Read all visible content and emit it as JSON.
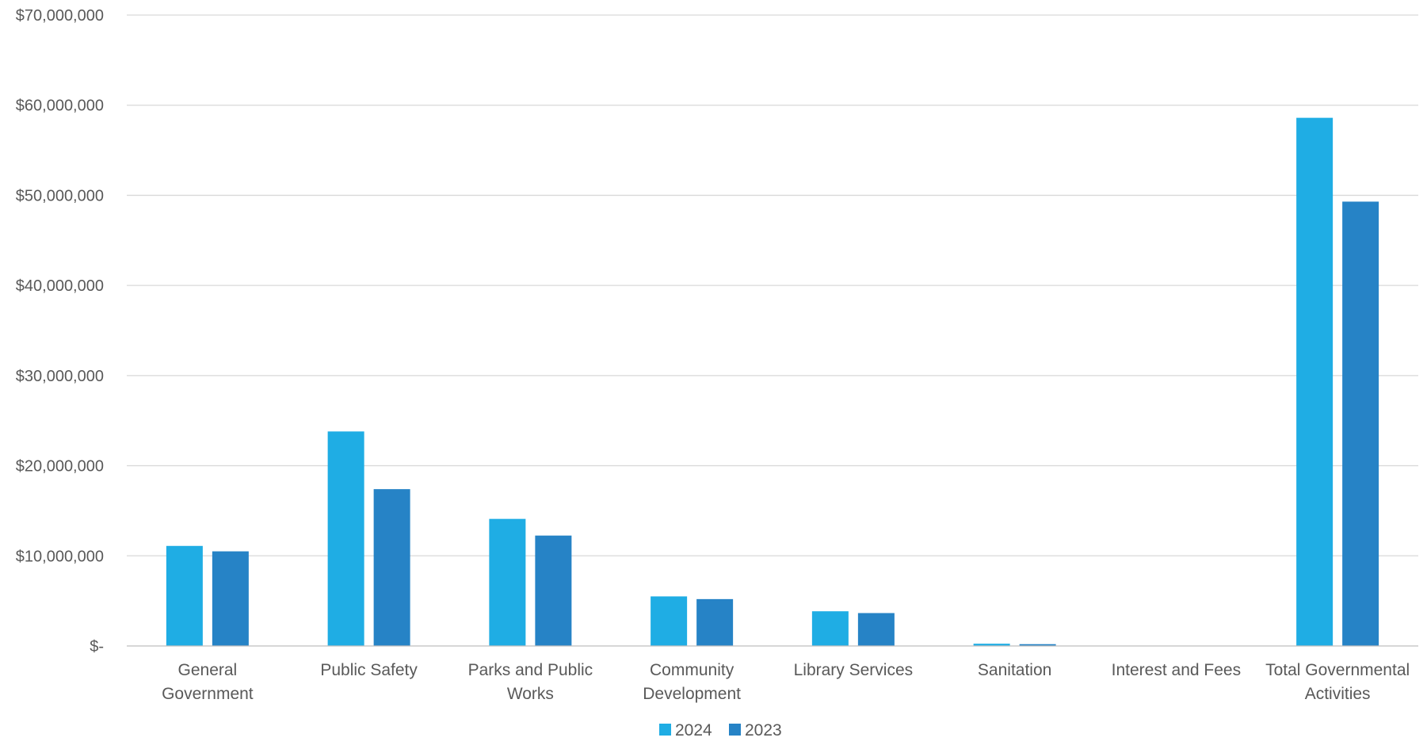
{
  "chart_data": {
    "type": "bar",
    "categories": [
      [
        "General",
        "Government"
      ],
      [
        "Public Safety"
      ],
      [
        "Parks and Public",
        "Works"
      ],
      [
        "Community",
        "Development"
      ],
      [
        "Library Services"
      ],
      [
        "Sanitation"
      ],
      [
        "Interest and Fees"
      ],
      [
        "Total Governmental",
        "Activities"
      ]
    ],
    "series": [
      {
        "name": "2024",
        "color": "#1fade4",
        "values": [
          11100000,
          23800000,
          14100000,
          5500000,
          3850000,
          250000,
          0,
          58600000
        ]
      },
      {
        "name": "2023",
        "color": "#2683c6",
        "values": [
          10500000,
          17400000,
          12250000,
          5200000,
          3650000,
          200000,
          0,
          49300000
        ]
      }
    ],
    "y_ticks": [
      {
        "value": 0,
        "label": "$-"
      },
      {
        "value": 10000000,
        "label": "$10,000,000"
      },
      {
        "value": 20000000,
        "label": "$20,000,000"
      },
      {
        "value": 30000000,
        "label": "$30,000,000"
      },
      {
        "value": 40000000,
        "label": "$40,000,000"
      },
      {
        "value": 50000000,
        "label": "$50,000,000"
      },
      {
        "value": 60000000,
        "label": "$60,000,000"
      },
      {
        "value": 70000000,
        "label": "$70,000,000"
      }
    ],
    "ylim": [
      0,
      70000000
    ],
    "grid": true,
    "legend_position": "bottom-center",
    "colors": {
      "gridline": "#d9d9d9",
      "axis": "#bfbfbf",
      "text": "#595959"
    }
  }
}
